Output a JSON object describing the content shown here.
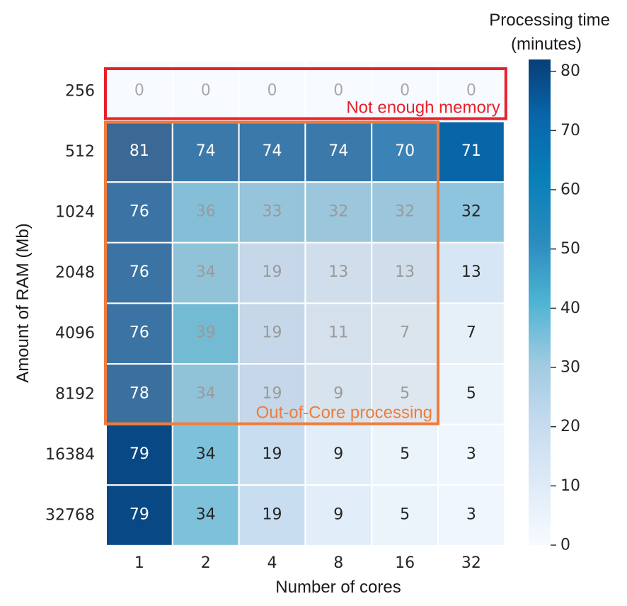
{
  "chart_data": {
    "type": "heatmap",
    "xlabel": "Number of cores",
    "ylabel": "Amount of RAM (Mb)",
    "x_categories": [
      "1",
      "2",
      "4",
      "8",
      "16",
      "32"
    ],
    "y_categories": [
      "256",
      "512",
      "1024",
      "2048",
      "4096",
      "8192",
      "16384",
      "32768"
    ],
    "values": [
      [
        0,
        0,
        0,
        0,
        0,
        0
      ],
      [
        81,
        74,
        74,
        74,
        70,
        71
      ],
      [
        76,
        36,
        33,
        32,
        32,
        32
      ],
      [
        76,
        34,
        19,
        13,
        13,
        13
      ],
      [
        76,
        39,
        19,
        11,
        7,
        7
      ],
      [
        78,
        34,
        19,
        9,
        5,
        5
      ],
      [
        79,
        34,
        19,
        9,
        5,
        3
      ],
      [
        79,
        34,
        19,
        9,
        5,
        3
      ]
    ],
    "colorbar": {
      "title_lines": [
        "Processing time",
        "(minutes)"
      ],
      "ticks": [
        0,
        10,
        20,
        30,
        40,
        50,
        60,
        70,
        80
      ],
      "range": [
        0,
        82
      ],
      "colormap": "Blues"
    },
    "annotations": [
      {
        "text": "Not enough memory",
        "color": "#e8202a",
        "rows": [
          0,
          0
        ],
        "cols": [
          0,
          5
        ]
      },
      {
        "text": "Out-of-Core processing",
        "color": "#f07c3a",
        "rows": [
          1,
          5
        ],
        "cols": [
          0,
          4
        ]
      }
    ],
    "grid": false
  }
}
